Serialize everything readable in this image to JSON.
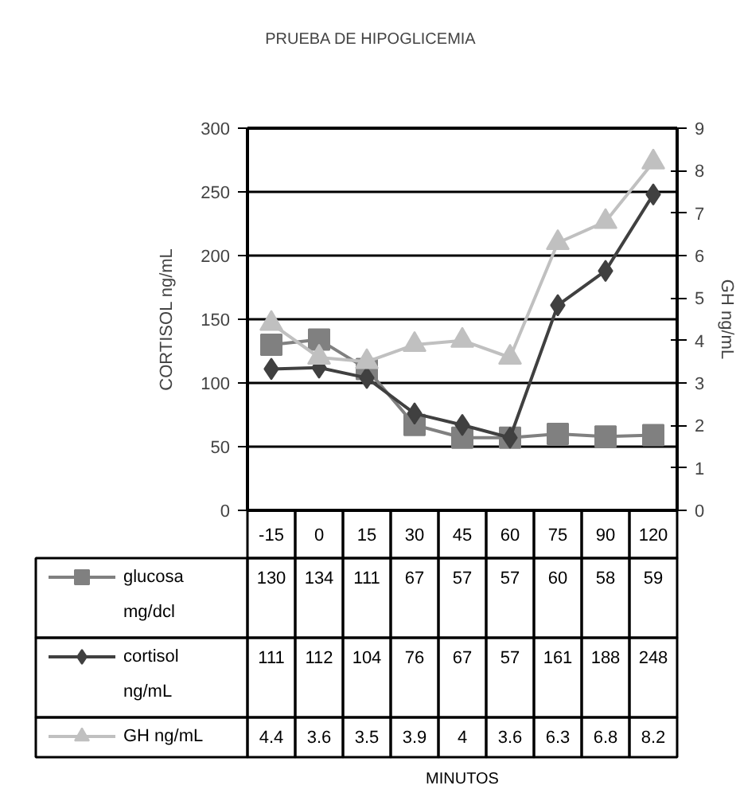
{
  "chart_data": {
    "type": "line",
    "title": "PRUEBA DE HIPOGLICEMIA",
    "annotations": [
      "MINUTOS"
    ],
    "ylabel": "CORTISOL ng/mL",
    "y2label": "GH ng/mL",
    "categories": [
      "-15",
      "0",
      "15",
      "30",
      "45",
      "60",
      "75",
      "90",
      "120"
    ],
    "series": [
      {
        "name": "glucosa mg/dcl",
        "color": "#808080",
        "marker": "square",
        "values": [
          130,
          134,
          111,
          67,
          57,
          57,
          60,
          58,
          59
        ]
      },
      {
        "name": "cortisol ng/mL",
        "color": "#404040",
        "marker": "diamond",
        "values": [
          111,
          112,
          104,
          76,
          67,
          57,
          161,
          188,
          248
        ]
      },
      {
        "name": "GH ng/mL",
        "color": "#c0c0c0",
        "marker": "triangle",
        "axis": "y2",
        "values": [
          4.4,
          3.6,
          3.5,
          3.9,
          4,
          3.6,
          6.3,
          6.8,
          8.2
        ]
      }
    ],
    "ylim": [
      0,
      300
    ],
    "yticks": [
      0,
      50,
      100,
      150,
      200,
      250,
      300
    ],
    "y2lim": [
      0,
      9
    ],
    "y2ticks": [
      0,
      1,
      2,
      3,
      4,
      5,
      6,
      7,
      8,
      9
    ],
    "grid": "y",
    "legend": "bottom left",
    "data_labels": true,
    "line_style": "solid"
  }
}
